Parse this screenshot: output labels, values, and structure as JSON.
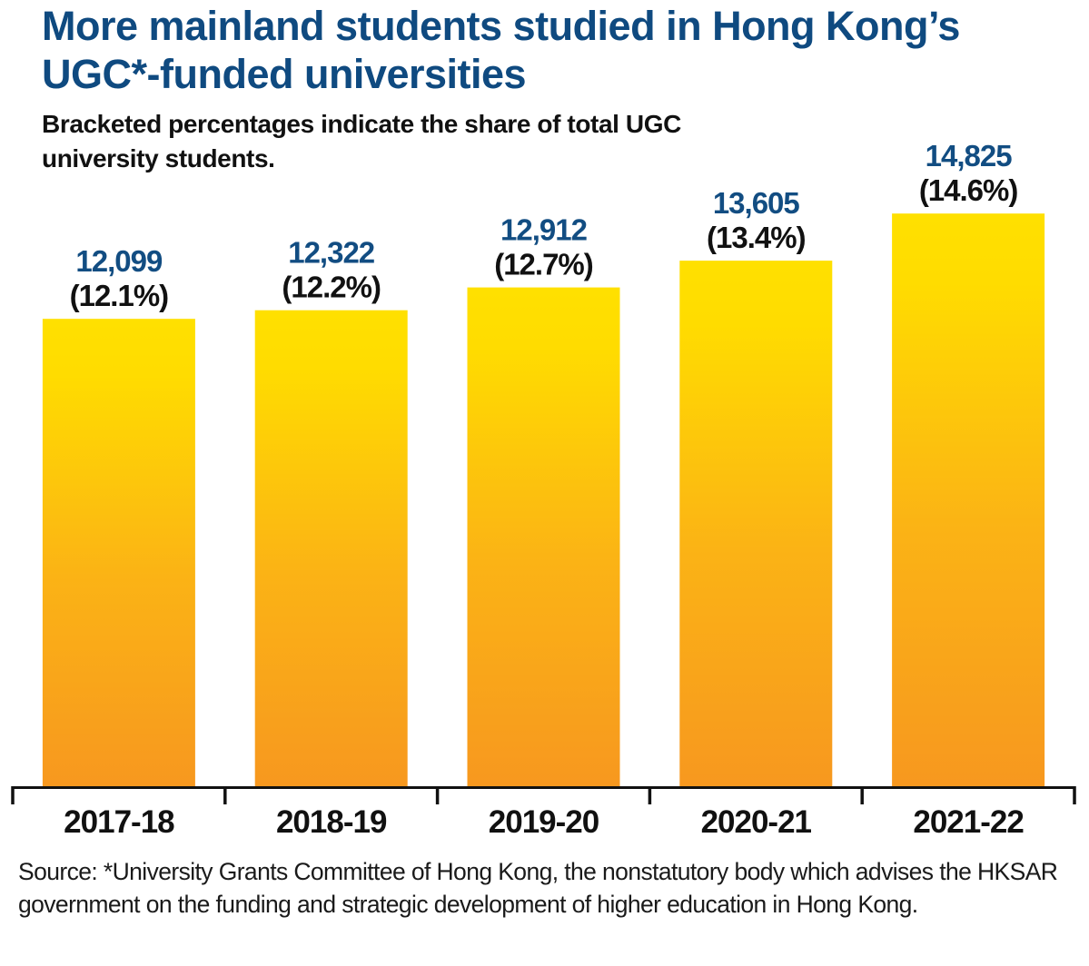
{
  "chart_data": {
    "type": "bar",
    "title": "More mainland students studied in Hong Kong’s UGC*-funded universities",
    "subtitle": "Bracketed percentages indicate the share of total UGC university students.",
    "categories": [
      "2017-18",
      "2018-19",
      "2019-20",
      "2020-21",
      "2021-22"
    ],
    "series": [
      {
        "name": "Mainland students",
        "values": [
          12099,
          12322,
          12912,
          13605,
          14825
        ],
        "value_labels": [
          "12,099",
          "12,322",
          "12,912",
          "13,605",
          "14,825"
        ],
        "share_labels": [
          "(12.1%)",
          "(12.2%)",
          "(12.7%)",
          "(13.4%)",
          "(14.6%)"
        ],
        "share_percent": [
          12.1,
          12.2,
          12.7,
          13.4,
          14.6
        ]
      }
    ],
    "xlabel": "",
    "ylabel": "",
    "ylim": [
      0,
      15000
    ],
    "grid": false,
    "legend": "none",
    "colors": {
      "bar_top": "#ffe000",
      "bar_bottom": "#f7981f",
      "value_label": "#124d82",
      "title": "#0f4a80"
    },
    "source": "Source: *University Grants Committee of Hong Kong, the nonstatutory body which advises the HKSAR government on the funding and strategic development of higher education in Hong Kong."
  }
}
